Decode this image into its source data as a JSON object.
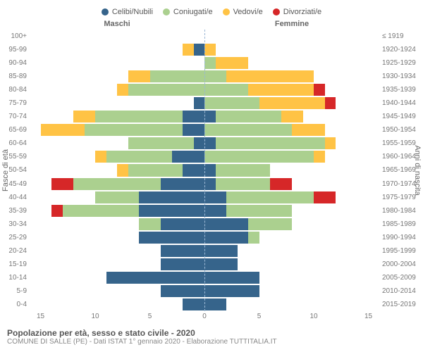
{
  "colors": {
    "celibi": "#36648b",
    "coniugati": "#abd08f",
    "vedovi": "#ffc345",
    "divorziati": "#d62728",
    "bg": "#ffffff",
    "text": "#666666",
    "centerline": "#9bb7d4"
  },
  "legend": [
    {
      "label": "Celibi/Nubili",
      "colorKey": "celibi"
    },
    {
      "label": "Coniugati/e",
      "colorKey": "coniugati"
    },
    {
      "label": "Vedovi/e",
      "colorKey": "vedovi"
    },
    {
      "label": "Divorziati/e",
      "colorKey": "divorziati"
    }
  ],
  "headers": {
    "male": "Maschi",
    "female": "Femmine"
  },
  "axis_left_title": "Fasce di età",
  "axis_right_title": "Anni di nascita",
  "xmax": 16,
  "xticks": [
    15,
    10,
    5,
    0,
    5,
    10,
    15
  ],
  "title": "Popolazione per età, sesso e stato civile - 2020",
  "subtitle": "COMUNE DI SALLE (PE) - Dati ISTAT 1° gennaio 2020 - Elaborazione TUTTITALIA.IT",
  "rows": [
    {
      "age": "100+",
      "birth": "≤ 1919",
      "m": {
        "cel": 0,
        "con": 0,
        "ved": 0,
        "div": 0
      },
      "f": {
        "cel": 0,
        "con": 0,
        "ved": 0,
        "div": 0
      }
    },
    {
      "age": "95-99",
      "birth": "1920-1924",
      "m": {
        "cel": 1,
        "con": 0,
        "ved": 1,
        "div": 0
      },
      "f": {
        "cel": 0,
        "con": 0,
        "ved": 1,
        "div": 0
      }
    },
    {
      "age": "90-94",
      "birth": "1925-1929",
      "m": {
        "cel": 0,
        "con": 0,
        "ved": 0,
        "div": 0
      },
      "f": {
        "cel": 0,
        "con": 1,
        "ved": 3,
        "div": 0
      }
    },
    {
      "age": "85-89",
      "birth": "1930-1934",
      "m": {
        "cel": 0,
        "con": 5,
        "ved": 2,
        "div": 0
      },
      "f": {
        "cel": 0,
        "con": 2,
        "ved": 8,
        "div": 0
      }
    },
    {
      "age": "80-84",
      "birth": "1935-1939",
      "m": {
        "cel": 0,
        "con": 7,
        "ved": 1,
        "div": 0
      },
      "f": {
        "cel": 0,
        "con": 4,
        "ved": 6,
        "div": 1
      }
    },
    {
      "age": "75-79",
      "birth": "1940-1944",
      "m": {
        "cel": 1,
        "con": 0,
        "ved": 0,
        "div": 0
      },
      "f": {
        "cel": 0,
        "con": 5,
        "ved": 6,
        "div": 1
      }
    },
    {
      "age": "70-74",
      "birth": "1945-1949",
      "m": {
        "cel": 2,
        "con": 8,
        "ved": 2,
        "div": 0
      },
      "f": {
        "cel": 1,
        "con": 6,
        "ved": 2,
        "div": 0
      }
    },
    {
      "age": "65-69",
      "birth": "1950-1954",
      "m": {
        "cel": 2,
        "con": 9,
        "ved": 4,
        "div": 0
      },
      "f": {
        "cel": 0,
        "con": 8,
        "ved": 3,
        "div": 0
      }
    },
    {
      "age": "60-64",
      "birth": "1955-1959",
      "m": {
        "cel": 1,
        "con": 6,
        "ved": 0,
        "div": 0
      },
      "f": {
        "cel": 1,
        "con": 10,
        "ved": 1,
        "div": 0
      }
    },
    {
      "age": "55-59",
      "birth": "1960-1964",
      "m": {
        "cel": 3,
        "con": 6,
        "ved": 1,
        "div": 0
      },
      "f": {
        "cel": 0,
        "con": 10,
        "ved": 1,
        "div": 0
      }
    },
    {
      "age": "50-54",
      "birth": "1965-1969",
      "m": {
        "cel": 2,
        "con": 5,
        "ved": 1,
        "div": 0
      },
      "f": {
        "cel": 1,
        "con": 5,
        "ved": 0,
        "div": 0
      }
    },
    {
      "age": "45-49",
      "birth": "1970-1974",
      "m": {
        "cel": 4,
        "con": 8,
        "ved": 0,
        "div": 2
      },
      "f": {
        "cel": 1,
        "con": 5,
        "ved": 0,
        "div": 2
      }
    },
    {
      "age": "40-44",
      "birth": "1975-1979",
      "m": {
        "cel": 6,
        "con": 4,
        "ved": 0,
        "div": 0
      },
      "f": {
        "cel": 2,
        "con": 8,
        "ved": 0,
        "div": 2
      }
    },
    {
      "age": "35-39",
      "birth": "1980-1984",
      "m": {
        "cel": 6,
        "con": 7,
        "ved": 0,
        "div": 1
      },
      "f": {
        "cel": 2,
        "con": 6,
        "ved": 0,
        "div": 0
      }
    },
    {
      "age": "30-34",
      "birth": "1985-1989",
      "m": {
        "cel": 4,
        "con": 2,
        "ved": 0,
        "div": 0
      },
      "f": {
        "cel": 4,
        "con": 4,
        "ved": 0,
        "div": 0
      }
    },
    {
      "age": "25-29",
      "birth": "1990-1994",
      "m": {
        "cel": 6,
        "con": 0,
        "ved": 0,
        "div": 0
      },
      "f": {
        "cel": 4,
        "con": 1,
        "ved": 0,
        "div": 0
      }
    },
    {
      "age": "20-24",
      "birth": "1995-1999",
      "m": {
        "cel": 4,
        "con": 0,
        "ved": 0,
        "div": 0
      },
      "f": {
        "cel": 3,
        "con": 0,
        "ved": 0,
        "div": 0
      }
    },
    {
      "age": "15-19",
      "birth": "2000-2004",
      "m": {
        "cel": 4,
        "con": 0,
        "ved": 0,
        "div": 0
      },
      "f": {
        "cel": 3,
        "con": 0,
        "ved": 0,
        "div": 0
      }
    },
    {
      "age": "10-14",
      "birth": "2005-2009",
      "m": {
        "cel": 9,
        "con": 0,
        "ved": 0,
        "div": 0
      },
      "f": {
        "cel": 5,
        "con": 0,
        "ved": 0,
        "div": 0
      }
    },
    {
      "age": "5-9",
      "birth": "2010-2014",
      "m": {
        "cel": 4,
        "con": 0,
        "ved": 0,
        "div": 0
      },
      "f": {
        "cel": 5,
        "con": 0,
        "ved": 0,
        "div": 0
      }
    },
    {
      "age": "0-4",
      "birth": "2015-2019",
      "m": {
        "cel": 2,
        "con": 0,
        "ved": 0,
        "div": 0
      },
      "f": {
        "cel": 2,
        "con": 0,
        "ved": 0,
        "div": 0
      }
    }
  ]
}
